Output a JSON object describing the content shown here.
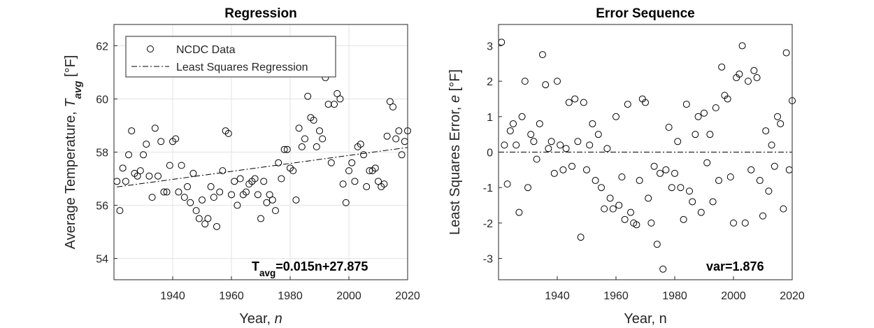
{
  "chart_data": [
    {
      "type": "scatter",
      "title": "Regression",
      "xlabel": [
        "Year, ",
        "n"
      ],
      "ylabel": [
        "Average Temperature, ",
        "T",
        "avg",
        " [°F]"
      ],
      "annotation": [
        "T",
        "avg",
        "=0.015n+27.875"
      ],
      "xlim": [
        1920,
        2020
      ],
      "ylim": [
        53.2,
        62.8
      ],
      "xticks": [
        1940,
        1960,
        1980,
        2000,
        2020
      ],
      "yticks": [
        54,
        56,
        58,
        60,
        62
      ],
      "grid": true,
      "legend": "upper-left",
      "series": [
        {
          "name": "NCDC Data",
          "color": "#000000",
          "marker": "circle",
          "x": [
            1921,
            1922,
            1923,
            1924,
            1925,
            1926,
            1927,
            1928,
            1929,
            1930,
            1931,
            1932,
            1933,
            1934,
            1935,
            1936,
            1937,
            1938,
            1939,
            1940,
            1941,
            1942,
            1943,
            1944,
            1945,
            1946,
            1947,
            1948,
            1949,
            1950,
            1951,
            1952,
            1953,
            1954,
            1955,
            1956,
            1957,
            1958,
            1959,
            1960,
            1961,
            1962,
            1963,
            1964,
            1965,
            1966,
            1967,
            1968,
            1969,
            1970,
            1971,
            1972,
            1973,
            1974,
            1975,
            1976,
            1977,
            1978,
            1979,
            1980,
            1981,
            1982,
            1983,
            1984,
            1985,
            1986,
            1987,
            1988,
            1989,
            1990,
            1991,
            1992,
            1993,
            1994,
            1995,
            1996,
            1997,
            1998,
            1999,
            2000,
            2001,
            2002,
            2003,
            2004,
            2005,
            2006,
            2007,
            2008,
            2009,
            2010,
            2011,
            2012,
            2013,
            2014,
            2015,
            2016,
            2017,
            2018,
            2019,
            2020
          ],
          "values": [
            56.9,
            55.8,
            57.4,
            56.9,
            57.9,
            58.8,
            57.2,
            57.1,
            57.3,
            57.9,
            58.3,
            57.1,
            56.3,
            58.9,
            57.1,
            58.4,
            56.5,
            56.5,
            57.5,
            58.4,
            58.5,
            56.5,
            57.5,
            56.3,
            56.7,
            56.1,
            57.2,
            55.8,
            55.5,
            56.2,
            55.3,
            55.5,
            56.7,
            56.3,
            55.2,
            56.5,
            57.3,
            58.8,
            58.7,
            56.4,
            56.9,
            56.0,
            57.0,
            56.4,
            56.5,
            56.8,
            56.9,
            57.0,
            56.4,
            55.5,
            56.9,
            56.1,
            56.4,
            56.2,
            55.8,
            57.6,
            57.0,
            58.1,
            58.1,
            57.4,
            57.3,
            56.2,
            58.9,
            58.2,
            58.5,
            60.1,
            59.3,
            59.2,
            58.2,
            58.8,
            58.5,
            60.8,
            59.8,
            57.6,
            59.8,
            60.2,
            60.0,
            56.8,
            56.1,
            57.3,
            57.6,
            56.9,
            58.2,
            58.3,
            57.9,
            56.7,
            57.3,
            57.3,
            57.4,
            56.9,
            56.7,
            56.8,
            58.6,
            59.9,
            59.7,
            58.5,
            58.8,
            57.9,
            58.4,
            58.8
          ]
        },
        {
          "name": "Least Squares Regression",
          "color": "#000000",
          "line": "dashdot",
          "x": [
            1921,
            2020
          ],
          "values": [
            56.69,
            58.175
          ]
        }
      ]
    },
    {
      "type": "scatter",
      "title": "Error Sequence",
      "xlabel": [
        "Year, n"
      ],
      "ylabel": [
        "Least Squares Error, ",
        "e",
        " [°F]"
      ],
      "annotation": [
        "var=1.876"
      ],
      "xlim": [
        1920,
        2020
      ],
      "ylim": [
        -3.6,
        3.6
      ],
      "xticks": [
        1940,
        1960,
        1980,
        2000,
        2020
      ],
      "yticks": [
        -3,
        -2,
        -1,
        0,
        1,
        2,
        3
      ],
      "grid": false,
      "zero_line": "dashdot",
      "series": [
        {
          "color": "#000000",
          "marker": "circle",
          "x": [
            1921,
            1922,
            1923,
            1924,
            1925,
            1926,
            1927,
            1928,
            1929,
            1930,
            1931,
            1932,
            1933,
            1934,
            1935,
            1936,
            1937,
            1938,
            1939,
            1940,
            1941,
            1942,
            1943,
            1944,
            1945,
            1946,
            1947,
            1948,
            1949,
            1950,
            1951,
            1952,
            1953,
            1954,
            1955,
            1956,
            1957,
            1958,
            1959,
            1960,
            1961,
            1962,
            1963,
            1964,
            1965,
            1966,
            1967,
            1968,
            1969,
            1970,
            1971,
            1972,
            1973,
            1974,
            1975,
            1976,
            1977,
            1978,
            1979,
            1980,
            1981,
            1982,
            1983,
            1984,
            1985,
            1986,
            1987,
            1988,
            1989,
            1990,
            1991,
            1992,
            1993,
            1994,
            1995,
            1996,
            1997,
            1998,
            1999,
            2000,
            2001,
            2002,
            2003,
            2004,
            2005,
            2006,
            2007,
            2008,
            2009,
            2010,
            2011,
            2012,
            2013,
            2014,
            2015,
            2016,
            2017,
            2018,
            2019,
            2020
          ],
          "values": [
            3.1,
            0.2,
            -0.9,
            0.6,
            0.8,
            0.2,
            -1.7,
            1.0,
            2.0,
            -1.0,
            0.5,
            0.3,
            -0.2,
            0.8,
            2.75,
            1.9,
            0.1,
            0.3,
            -0.6,
            2.0,
            0.2,
            -0.5,
            0.1,
            1.4,
            -0.4,
            1.5,
            0.3,
            -2.4,
            1.4,
            -0.5,
            0.2,
            0.8,
            -0.8,
            0.5,
            -1.0,
            -1.6,
            0.1,
            -1.3,
            -1.6,
            1.0,
            -1.5,
            -0.7,
            -1.9,
            1.35,
            -1.7,
            -2.0,
            -2.05,
            -0.8,
            1.5,
            1.4,
            -1.3,
            -2.0,
            -0.4,
            -2.6,
            -0.6,
            -3.3,
            -0.5,
            0.7,
            -1.0,
            -0.6,
            0.3,
            -1.0,
            -1.9,
            1.35,
            -1.1,
            -1.4,
            0.5,
            1.0,
            -1.7,
            1.1,
            -0.3,
            0.5,
            -1.4,
            1.25,
            -0.8,
            2.4,
            1.6,
            1.5,
            -0.7,
            -2.0,
            2.1,
            2.2,
            3.0,
            -2.0,
            2.0,
            -0.5,
            2.3,
            2.1,
            -0.8,
            -1.8,
            0.6,
            -1.1,
            0.2,
            -0.4,
            1.0,
            0.8,
            -1.6,
            2.8,
            -0.5,
            1.45
          ]
        }
      ]
    }
  ]
}
